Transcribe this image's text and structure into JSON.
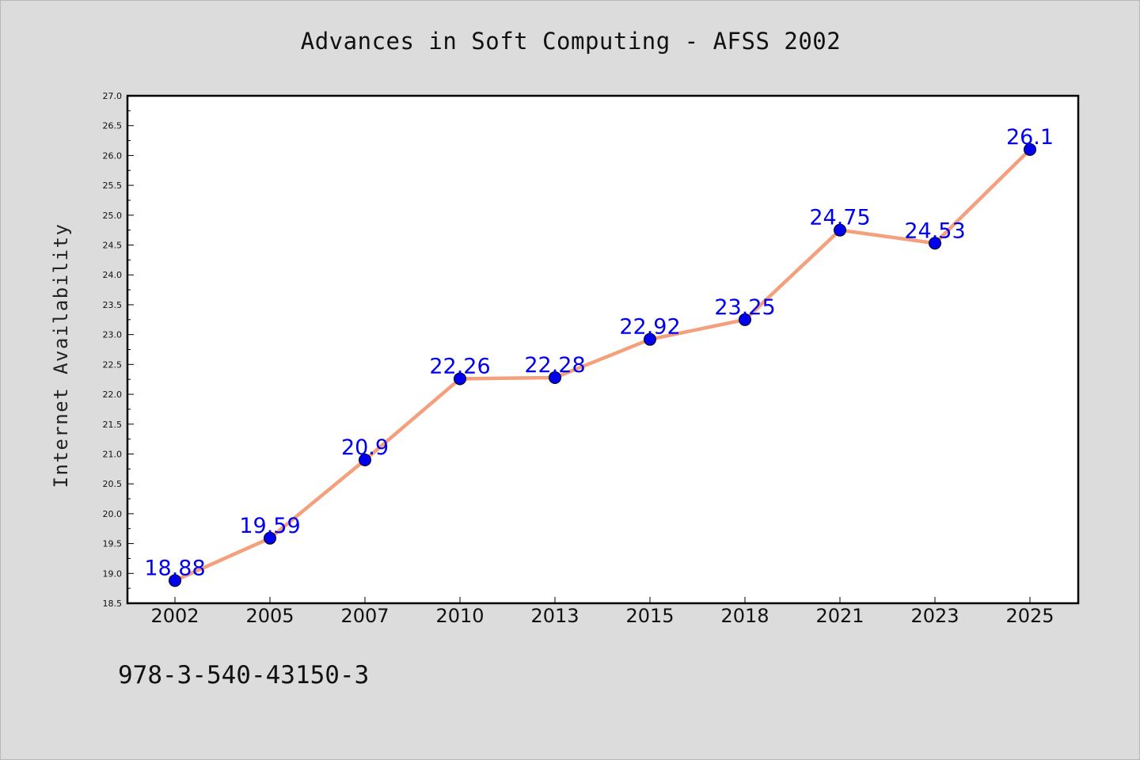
{
  "chart_data": {
    "type": "line",
    "title": "Advances in Soft Computing - AFSS 2002",
    "xlabel": "",
    "ylabel": "Internet Availability",
    "categories": [
      "2002",
      "2005",
      "2007",
      "2010",
      "2013",
      "2015",
      "2018",
      "2021",
      "2023",
      "2025"
    ],
    "series": [
      {
        "values": [
          18.88,
          19.59,
          20.9,
          22.26,
          22.28,
          22.92,
          23.25,
          24.75,
          24.53,
          26.1
        ],
        "data_labels": [
          "18.88",
          "19.59",
          "20.9",
          "22.26",
          "22.28",
          "22.92",
          "23.25",
          "24.75",
          "24.53",
          "26.1"
        ],
        "line_color": "#f4a07c",
        "marker_color": "#0000ee"
      }
    ],
    "ylim": [
      18.5,
      27.0
    ],
    "yticks": [
      "18.5",
      "19.0",
      "19.5",
      "20.0",
      "20.5",
      "21.0",
      "21.5",
      "22.0",
      "22.5",
      "23.0",
      "23.5",
      "24.0",
      "24.5",
      "25.0",
      "25.5",
      "26.0",
      "26.5",
      "27.0"
    ],
    "grid": false,
    "legend": "none",
    "footer_text": "978-3-540-43150-3",
    "background_color": "#dcdcdc",
    "plot_background_color": "#ffffff"
  }
}
